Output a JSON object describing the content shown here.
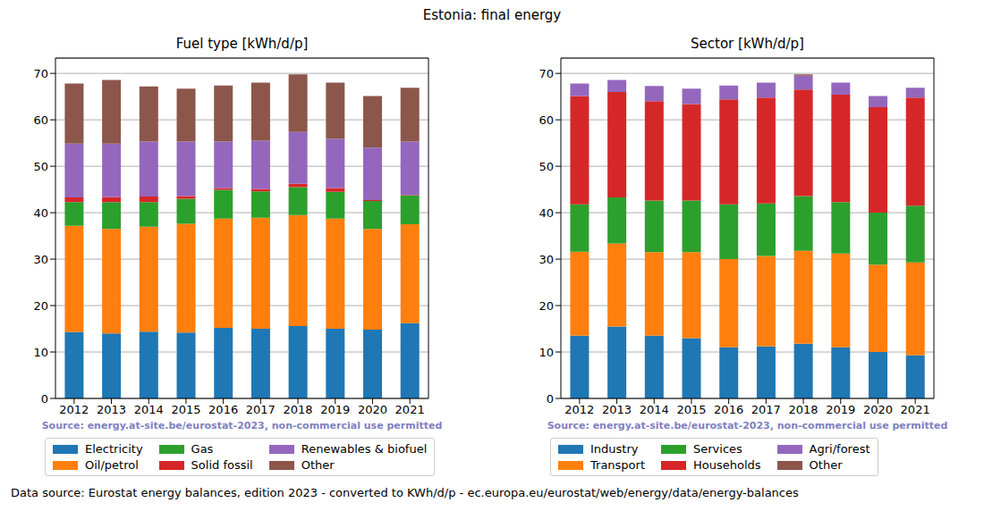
{
  "title": "Estonia: final energy",
  "footer": "Data source: Eurostat energy balances, edition 2023 - converted to KWh/d/p - ec.europa.eu/eurostat/web/energy/data/energy-balances",
  "chart_data": [
    {
      "type": "bar",
      "title": "Fuel type [kWh/d/p]",
      "source": "Source: energy.at-site.be/eurostat-2023, non-commercial use permitted",
      "categories": [
        "2012",
        "2013",
        "2014",
        "2015",
        "2016",
        "2017",
        "2018",
        "2019",
        "2020",
        "2021"
      ],
      "series": [
        {
          "name": "Electricity",
          "color": "#1f77b4",
          "values": [
            14.3,
            14.0,
            14.4,
            14.2,
            15.2,
            15.0,
            15.6,
            15.0,
            14.8,
            16.2
          ]
        },
        {
          "name": "Oil/petrol",
          "color": "#ff7f0e",
          "values": [
            22.9,
            22.5,
            22.6,
            23.4,
            23.5,
            23.9,
            23.9,
            23.7,
            21.7,
            21.3
          ]
        },
        {
          "name": "Gas",
          "color": "#2ca02c",
          "values": [
            5.1,
            5.8,
            5.3,
            5.4,
            6.2,
            5.7,
            6.0,
            5.8,
            6.0,
            6.2
          ]
        },
        {
          "name": "Solid fossil",
          "color": "#d62728",
          "values": [
            1.0,
            1.1,
            1.2,
            0.6,
            0.4,
            0.5,
            0.7,
            0.8,
            0.2,
            0.1
          ]
        },
        {
          "name": "Renewables & biofuel",
          "color": "#9467bd",
          "values": [
            11.6,
            11.5,
            11.8,
            11.7,
            10.0,
            10.4,
            11.2,
            10.6,
            11.3,
            11.5
          ]
        },
        {
          "name": "Other",
          "color": "#8c564b",
          "values": [
            12.9,
            13.7,
            11.9,
            11.4,
            12.1,
            12.5,
            12.4,
            12.1,
            11.1,
            11.6
          ]
        }
      ],
      "ylim": [
        0,
        73.3
      ],
      "yticks": [
        0,
        10,
        20,
        30,
        40,
        50,
        60,
        70
      ],
      "grid": true,
      "stacked": true,
      "legend": "bottom"
    },
    {
      "type": "bar",
      "title": "Sector [kWh/d/p]",
      "source": "Source: energy.at-site.be/eurostat-2023, non-commercial use permitted",
      "categories": [
        "2012",
        "2013",
        "2014",
        "2015",
        "2016",
        "2017",
        "2018",
        "2019",
        "2020",
        "2021"
      ],
      "series": [
        {
          "name": "Industry",
          "color": "#1f77b4",
          "values": [
            13.5,
            15.5,
            13.5,
            13.0,
            11.0,
            11.2,
            11.8,
            11.0,
            10.0,
            9.3
          ]
        },
        {
          "name": "Transport",
          "color": "#ff7f0e",
          "values": [
            18.1,
            17.9,
            18.0,
            18.5,
            19.0,
            19.5,
            20.0,
            20.2,
            18.8,
            20.0
          ]
        },
        {
          "name": "Services",
          "color": "#2ca02c",
          "values": [
            10.2,
            9.9,
            11.1,
            11.1,
            11.8,
            11.3,
            11.8,
            11.1,
            11.2,
            12.2
          ]
        },
        {
          "name": "Households",
          "color": "#d62728",
          "values": [
            23.3,
            22.7,
            21.4,
            20.8,
            22.6,
            22.8,
            22.9,
            23.1,
            22.7,
            23.3
          ]
        },
        {
          "name": "Agri/forest",
          "color": "#9467bd",
          "values": [
            2.7,
            2.6,
            3.3,
            3.3,
            3.0,
            3.2,
            3.0,
            2.6,
            2.4,
            2.1
          ]
        },
        {
          "name": "Other",
          "color": "#8c564b",
          "values": [
            0,
            0,
            0,
            0,
            0,
            0,
            0.3,
            0,
            0,
            0
          ]
        }
      ],
      "ylim": [
        0,
        73.3
      ],
      "yticks": [
        0,
        10,
        20,
        30,
        40,
        50,
        60,
        70
      ],
      "grid": true,
      "stacked": true,
      "legend": "bottom"
    }
  ]
}
